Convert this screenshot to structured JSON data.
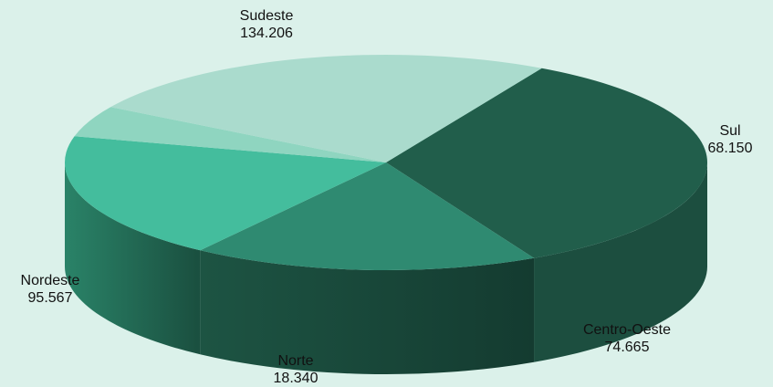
{
  "chart_data": {
    "type": "pie",
    "title": "",
    "slices": [
      {
        "name": "Sudeste",
        "label": "134.206",
        "value": 134206,
        "color": "#215e4b"
      },
      {
        "name": "Sul",
        "label": "68.150",
        "value": 68150,
        "color": "#2f8a71"
      },
      {
        "name": "Centro-Oeste",
        "label": "74.665",
        "value": 74665,
        "color": "#44bd9d"
      },
      {
        "name": "Norte",
        "label": "18.340",
        "value": 18340,
        "color": "#8fd5c0"
      },
      {
        "name": "Nordeste",
        "label": "95.567",
        "value": 95567,
        "color": "#aadbcd"
      }
    ]
  }
}
